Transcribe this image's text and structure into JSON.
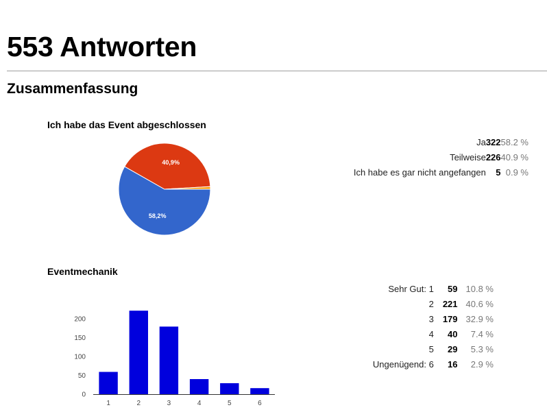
{
  "header": {
    "title": "553 Antworten",
    "section": "Zusammenfassung"
  },
  "questions": [
    {
      "title": "Ich habe das Event abgeschlossen",
      "rows": [
        {
          "label": "Ja",
          "count": "322",
          "percent": "58.2 %"
        },
        {
          "label": "Teilweise",
          "count": "226",
          "percent": "40.9 %"
        },
        {
          "label": "Ich habe es gar nicht angefangen",
          "count": "5",
          "percent": "0.9 %"
        }
      ]
    },
    {
      "title": "Eventmechanik",
      "rows": [
        {
          "label": "Sehr Gut: 1",
          "count": "59",
          "percent": "10.8 %"
        },
        {
          "label": "2",
          "count": "221",
          "percent": "40.6 %"
        },
        {
          "label": "3",
          "count": "179",
          "percent": "32.9 %"
        },
        {
          "label": "4",
          "count": "40",
          "percent": "7.4 %"
        },
        {
          "label": "5",
          "count": "29",
          "percent": "5.3 %"
        },
        {
          "label": "Ungenügend: 6",
          "count": "16",
          "percent": "2.9 %"
        }
      ]
    }
  ],
  "chart_data": [
    {
      "type": "pie",
      "title": "Ich habe das Event abgeschlossen",
      "categories": [
        "Ja",
        "Teilweise",
        "Ich habe es gar nicht angefangen"
      ],
      "values": [
        322,
        226,
        5
      ],
      "slice_labels": [
        "58,2%",
        "40,9%",
        ""
      ],
      "colors": [
        "#3366cc",
        "#dc3912",
        "#ff9900"
      ]
    },
    {
      "type": "bar",
      "title": "Eventmechanik",
      "categories": [
        "1",
        "2",
        "3",
        "4",
        "5",
        "6"
      ],
      "values": [
        59,
        221,
        179,
        40,
        29,
        16
      ],
      "yticks": [
        0,
        50,
        100,
        150,
        200
      ],
      "ylim": [
        0,
        225
      ],
      "color": "#0000dd",
      "grid": false
    }
  ]
}
